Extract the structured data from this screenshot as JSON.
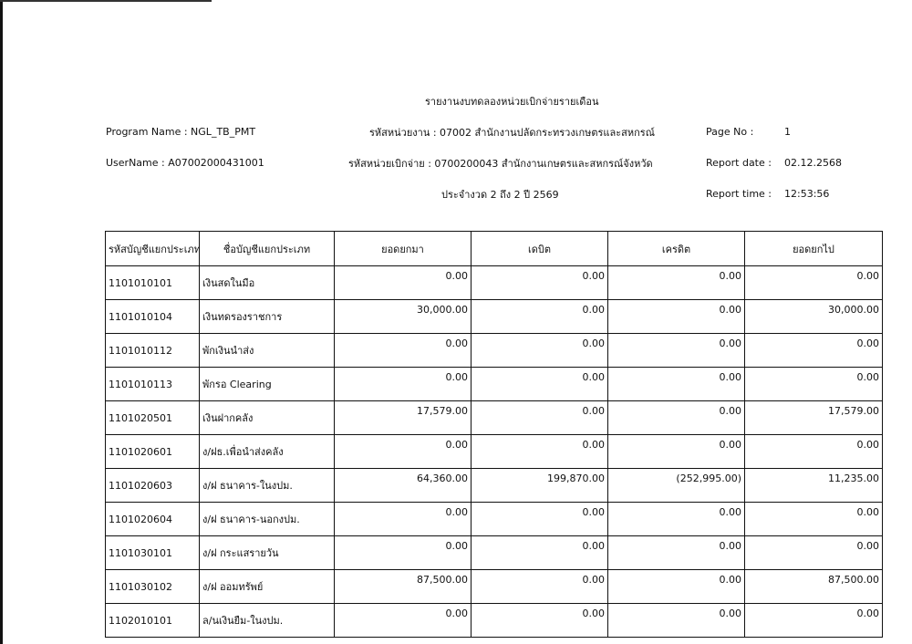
{
  "report": {
    "title": "รายงานงบทดลองหน่วยเบิกจ่ายรายเดือน",
    "program_name": "Program Name : NGL_TB_PMT",
    "username": "UserName : A07002000431001",
    "agency": "รหัสหน่วยงาน : 07002 สำนักงานปลัดกระทรวงเกษตรและสหกรณ์",
    "disbursing_unit": "รหัสหน่วยเบิกจ่าย : 0700200043 สำนักงานเกษตรและสหกรณ์จังหวัด",
    "period": "ประจำงวด 2 ถึง 2 ปี 2569",
    "page_label": "Page No :",
    "page_value": "1",
    "date_label": "Report date :",
    "date_value": "02.12.2568",
    "time_label": "Report time :",
    "time_value": "12:53:56"
  },
  "table": {
    "headers": [
      "รหัสบัญชีแยกประเภท",
      "ชื่อบัญชีแยกประเภท",
      "ยอดยกมา",
      "เดบิต",
      "เครดิต",
      "ยอดยกไป"
    ],
    "rows": [
      [
        "1101010101",
        "เงินสดในมือ",
        "0.00",
        "0.00",
        "0.00",
        "0.00"
      ],
      [
        "1101010104",
        "เงินทดรองราชการ",
        "30,000.00",
        "0.00",
        "0.00",
        "30,000.00"
      ],
      [
        "1101010112",
        "พักเงินนำส่ง",
        "0.00",
        "0.00",
        "0.00",
        "0.00"
      ],
      [
        "1101010113",
        "พักรอ Clearing",
        "0.00",
        "0.00",
        "0.00",
        "0.00"
      ],
      [
        "1101020501",
        "เงินฝากคลัง",
        "17,579.00",
        "0.00",
        "0.00",
        "17,579.00"
      ],
      [
        "1101020601",
        "ง/ฝธ.เพื่อนำส่งคลัง",
        "0.00",
        "0.00",
        "0.00",
        "0.00"
      ],
      [
        "1101020603",
        "ง/ฝ ธนาคาร-ในงปม.",
        "64,360.00",
        "199,870.00",
        "(252,995.00)",
        "11,235.00"
      ],
      [
        "1101020604",
        "ง/ฝ ธนาคาร-นอกงปม.",
        "0.00",
        "0.00",
        "0.00",
        "0.00"
      ],
      [
        "1101030101",
        "ง/ฝ กระแสรายวัน",
        "0.00",
        "0.00",
        "0.00",
        "0.00"
      ],
      [
        "1101030102",
        "ง/ฝ ออมทรัพย์",
        "87,500.00",
        "0.00",
        "0.00",
        "87,500.00"
      ],
      [
        "1102010101",
        "ล/นเงินยืม-ในงปม.",
        "0.00",
        "0.00",
        "0.00",
        "0.00"
      ]
    ]
  }
}
